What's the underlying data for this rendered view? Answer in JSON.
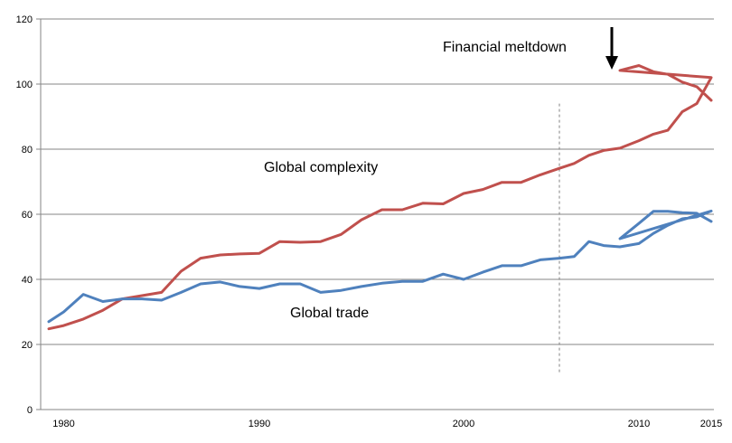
{
  "chart_data": {
    "type": "line",
    "title": "",
    "xlabel": "",
    "ylabel": "",
    "xlim": [
      1979.5,
      2015
    ],
    "ylim": [
      0,
      120
    ],
    "grid": true,
    "y_ticks": [
      0,
      20,
      40,
      60,
      80,
      100,
      120
    ],
    "y_tick_labels": [
      "0",
      "20",
      "40",
      "60",
      "80",
      "100",
      "120"
    ],
    "x_ticks": [
      1980,
      1990,
      2000,
      2010,
      2015
    ],
    "x_tick_labels": [
      "1980",
      "1990",
      "2000",
      "2010",
      "2015"
    ],
    "x": [
      1979.5,
      1980,
      1981,
      1982,
      1983,
      1984,
      1985,
      1986,
      1987,
      1988,
      1989,
      1990,
      1991,
      1992,
      1993,
      1994,
      1995,
      1996,
      1997,
      1998,
      1999,
      2000,
      2001,
      2002,
      2003,
      2004,
      2005,
      2006,
      2007,
      2008,
      2009,
      2010,
      2011,
      2012,
      2013,
      2014,
      2015
    ],
    "series": [
      {
        "name": "Global complexity",
        "color": "#c0504d",
        "values": [
          24.8,
          25.8,
          27.8,
          30.5,
          34,
          35,
          36,
          42.5,
          46.5,
          47.5,
          47.8,
          48,
          51.6,
          51.4,
          51.6,
          53.8,
          58.3,
          61.4,
          61.4,
          63.4,
          63.2,
          66.4,
          67.6,
          69.8,
          69.8,
          72.1,
          74.1,
          75.6,
          78.1,
          79.6,
          80.3,
          82.6,
          84.6,
          85.8,
          91.5,
          94,
          102
        ]
      },
      {
        "name": "Global trade",
        "color": "#4f81bd",
        "values": [
          27,
          30,
          35.4,
          33.2,
          34,
          34,
          33.6,
          36,
          38.6,
          39.2,
          37.8,
          37.2,
          38.6,
          38.6,
          36,
          36.6,
          37.8,
          38.8,
          39.4,
          39.4,
          41.6,
          40,
          42.2,
          44.2,
          44.2,
          46,
          46.5,
          47,
          51.6,
          50.4,
          50,
          51,
          54.1,
          56.6,
          58.6,
          59.2,
          61
        ]
      }
    ],
    "tail": {
      "x": [
        2009,
        2010,
        2011,
        2012,
        2013,
        2014,
        2015
      ],
      "Global complexity": [
        104.2,
        105.7,
        103.8,
        103,
        100.6,
        99.2,
        95
      ],
      "Global trade": [
        52.5,
        57.2,
        60.9,
        60.9,
        60.5,
        60.3,
        57.8
      ]
    },
    "annotations": {
      "meltdown_label": "Financial meltdown",
      "complexity_label": "Global complexity",
      "trade_label": "Global trade",
      "arrow_at_year": 2008,
      "dashed_line_at_year": 2005
    }
  }
}
